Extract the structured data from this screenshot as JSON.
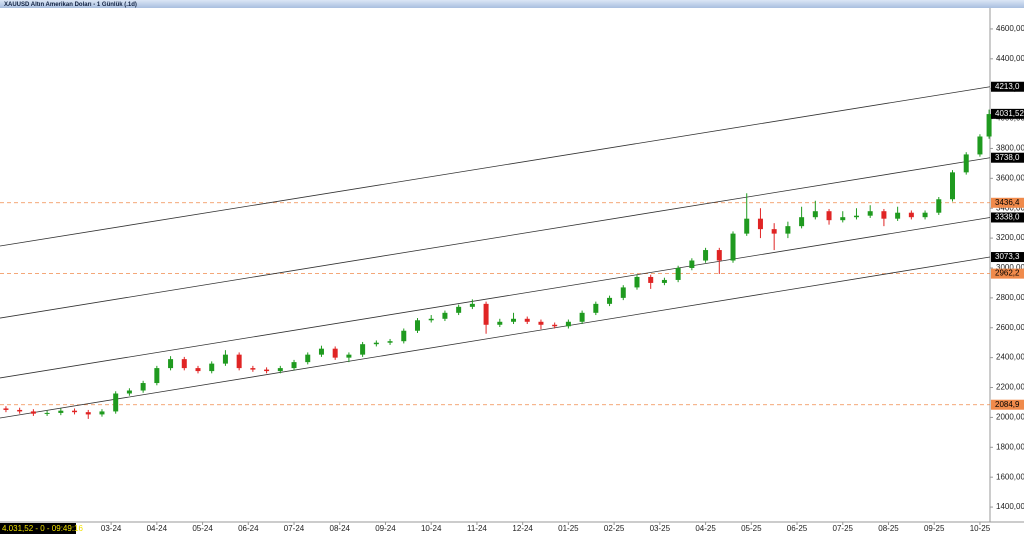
{
  "window_title": "XAUUSD Altın Amerikan Doları - 1 Günlük (.1d)",
  "status": "4.031,52 - 0 - 09:49:16",
  "chart_data": {
    "type": "candlestick",
    "up_color": "#1f9a1f",
    "down_color": "#e02424",
    "x": [
      0.7,
      1.0,
      1.3,
      1.6,
      1.9,
      2.2,
      2.5,
      2.8,
      3.1,
      3.4,
      3.7,
      4.0,
      4.3,
      4.6,
      4.9,
      5.2,
      5.5,
      5.8,
      6.1,
      6.4,
      6.7,
      7.0,
      7.3,
      7.6,
      7.9,
      8.2,
      8.5,
      8.8,
      9.1,
      9.4,
      9.7,
      10.0,
      10.3,
      10.6,
      10.9,
      11.2,
      11.5,
      11.8,
      12.1,
      12.4,
      12.7,
      13.0,
      13.3,
      13.6,
      13.9,
      14.2,
      14.5,
      14.8,
      15.1,
      15.4,
      15.7,
      16.0,
      16.3,
      16.6,
      16.9,
      17.2,
      17.5,
      17.8,
      18.1,
      18.4,
      18.7,
      19.0,
      19.3,
      19.6,
      19.9,
      20.2,
      20.5,
      20.8,
      21.1,
      21.4,
      21.7,
      22.0,
      22.2
    ],
    "open": [
      2060,
      2050,
      2040,
      2025,
      2030,
      2045,
      2035,
      2020,
      2040,
      2160,
      2180,
      2230,
      2330,
      2390,
      2330,
      2310,
      2360,
      2420,
      2330,
      2320,
      2310,
      2330,
      2370,
      2420,
      2460,
      2400,
      2420,
      2490,
      2500,
      2510,
      2580,
      2650,
      2660,
      2700,
      2740,
      2760,
      2620,
      2640,
      2660,
      2640,
      2620,
      2610,
      2640,
      2700,
      2760,
      2800,
      2870,
      2940,
      2900,
      2920,
      3000,
      3050,
      3120,
      3050,
      3230,
      3330,
      3260,
      3230,
      3280,
      3340,
      3380,
      3320,
      3340,
      3350,
      3380,
      3330,
      3370,
      3340,
      3370,
      3460,
      3640,
      3760,
      3880
    ],
    "high": [
      2075,
      2065,
      2055,
      2045,
      2060,
      2060,
      2050,
      2055,
      2175,
      2195,
      2245,
      2345,
      2410,
      2405,
      2345,
      2375,
      2450,
      2435,
      2345,
      2335,
      2345,
      2385,
      2435,
      2480,
      2475,
      2435,
      2505,
      2515,
      2525,
      2595,
      2665,
      2685,
      2715,
      2755,
      2790,
      2775,
      2660,
      2700,
      2675,
      2655,
      2635,
      2655,
      2715,
      2775,
      2815,
      2885,
      2955,
      2955,
      2935,
      3015,
      3065,
      3135,
      3135,
      3245,
      3500,
      3400,
      3300,
      3310,
      3410,
      3450,
      3395,
      3380,
      3400,
      3420,
      3395,
      3410,
      3385,
      3385,
      3475,
      3655,
      3775,
      3895,
      4060
    ],
    "low": [
      2035,
      2025,
      2010,
      2010,
      2015,
      2020,
      1990,
      2005,
      2025,
      2145,
      2165,
      2215,
      2315,
      2315,
      2295,
      2295,
      2345,
      2315,
      2305,
      2295,
      2295,
      2315,
      2355,
      2405,
      2385,
      2370,
      2405,
      2475,
      2485,
      2495,
      2565,
      2635,
      2645,
      2685,
      2725,
      2560,
      2605,
      2625,
      2625,
      2590,
      2595,
      2595,
      2625,
      2685,
      2745,
      2785,
      2855,
      2860,
      2885,
      2905,
      2985,
      3035,
      2960,
      3035,
      3215,
      3200,
      3120,
      3200,
      3265,
      3325,
      3290,
      3305,
      3325,
      3335,
      3280,
      3315,
      3325,
      3325,
      3355,
      3445,
      3625,
      3745,
      3865
    ],
    "close": [
      2050,
      2040,
      2025,
      2030,
      2045,
      2035,
      2020,
      2040,
      2160,
      2180,
      2230,
      2330,
      2390,
      2330,
      2310,
      2360,
      2420,
      2330,
      2320,
      2310,
      2330,
      2370,
      2420,
      2460,
      2400,
      2420,
      2490,
      2500,
      2510,
      2580,
      2650,
      2660,
      2700,
      2740,
      2760,
      2620,
      2640,
      2660,
      2640,
      2620,
      2610,
      2640,
      2700,
      2760,
      2800,
      2870,
      2940,
      2900,
      2920,
      3000,
      3050,
      3120,
      3050,
      3230,
      3330,
      3260,
      3230,
      3280,
      3340,
      3380,
      3320,
      3340,
      3350,
      3380,
      3330,
      3370,
      3340,
      3370,
      3460,
      3640,
      3760,
      3880,
      4030
    ],
    "xlim": [
      0.57,
      22.22
    ],
    "ylim": [
      1300,
      4740
    ],
    "xticks": [
      {
        "value": 3,
        "label": "03-24"
      },
      {
        "value": 4,
        "label": "04-24"
      },
      {
        "value": 5,
        "label": "05-24"
      },
      {
        "value": 6,
        "label": "06-24"
      },
      {
        "value": 7,
        "label": "07-24"
      },
      {
        "value": 8,
        "label": "08-24"
      },
      {
        "value": 9,
        "label": "09-24"
      },
      {
        "value": 10,
        "label": "10-24"
      },
      {
        "value": 11,
        "label": "11-24"
      },
      {
        "value": 12,
        "label": "12-24"
      },
      {
        "value": 13,
        "label": "01-25"
      },
      {
        "value": 14,
        "label": "02-25"
      },
      {
        "value": 15,
        "label": "03-25"
      },
      {
        "value": 16,
        "label": "04-25"
      },
      {
        "value": 17,
        "label": "05-25"
      },
      {
        "value": 18,
        "label": "06-25"
      },
      {
        "value": 19,
        "label": "07-25"
      },
      {
        "value": 20,
        "label": "08-25"
      },
      {
        "value": 21,
        "label": "09-25"
      },
      {
        "value": 22,
        "label": "10-25"
      }
    ],
    "yticks": [
      {
        "value": 1400,
        "label": "1400,00"
      },
      {
        "value": 1600,
        "label": "1600,00"
      },
      {
        "value": 1800,
        "label": "1800,00"
      },
      {
        "value": 2000,
        "label": "2000,00"
      },
      {
        "value": 2200,
        "label": "2200,00"
      },
      {
        "value": 2400,
        "label": "2400,00"
      },
      {
        "value": 2600,
        "label": "2600,00"
      },
      {
        "value": 2800,
        "label": "2800,00"
      },
      {
        "value": 3000,
        "label": "3000,00"
      },
      {
        "value": 3200,
        "label": "3200,00"
      },
      {
        "value": 3400,
        "label": "3400,00"
      },
      {
        "value": 3600,
        "label": "3600,00"
      },
      {
        "value": 3800,
        "label": "3800,00"
      },
      {
        "value": 4000,
        "label": "4000,00"
      },
      {
        "value": 4200,
        "label": "4200,00"
      },
      {
        "value": 4400,
        "label": "4400,00"
      },
      {
        "value": 4600,
        "label": "4600,00"
      }
    ],
    "trend_lines": [
      {
        "color": "#333333",
        "start": [
          0.57,
          3147
        ],
        "end": [
          22.22,
          4213
        ],
        "end_label": "4213,0"
      },
      {
        "color": "#333333",
        "start": [
          0.57,
          2665
        ],
        "end": [
          22.22,
          3738
        ],
        "end_label": "3738,0"
      },
      {
        "color": "#333333",
        "start": [
          0.57,
          2264
        ],
        "end": [
          22.22,
          3338
        ],
        "end_label": "3338,0"
      },
      {
        "color": "#333333",
        "start": [
          0.57,
          1996
        ],
        "end": [
          22.22,
          3073.3
        ],
        "end_label": "3073,3"
      }
    ],
    "levels": [
      {
        "value": 3436.4,
        "label": "3436,4",
        "color": "#f08a4b"
      },
      {
        "value": 2962.2,
        "label": "2962,2",
        "color": "#f08a4b"
      },
      {
        "value": 2084.9,
        "label": "2084,9",
        "color": "#f08a4b"
      }
    ],
    "last_price": {
      "value": 4031.52,
      "label": "4031,52"
    }
  }
}
